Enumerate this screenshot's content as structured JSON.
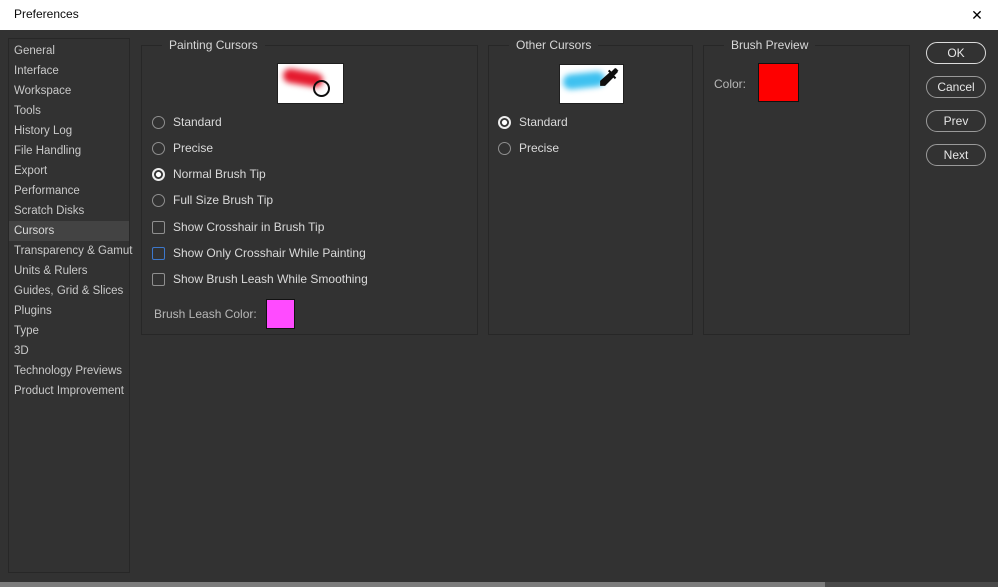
{
  "window": {
    "title": "Preferences",
    "close_icon": "✕"
  },
  "colors": {
    "background": "#323232",
    "focus_border": "#3d78cc",
    "paint_stroke": "#e51a2e",
    "other_stroke": "#3fc1f0",
    "leash_swatch": "#ff4bff",
    "preview_swatch": "#fe0000"
  },
  "sidebar": {
    "items": [
      {
        "label": "General",
        "selected": false
      },
      {
        "label": "Interface",
        "selected": false
      },
      {
        "label": "Workspace",
        "selected": false
      },
      {
        "label": "Tools",
        "selected": false
      },
      {
        "label": "History Log",
        "selected": false
      },
      {
        "label": "File Handling",
        "selected": false
      },
      {
        "label": "Export",
        "selected": false
      },
      {
        "label": "Performance",
        "selected": false
      },
      {
        "label": "Scratch Disks",
        "selected": false
      },
      {
        "label": "Cursors",
        "selected": true
      },
      {
        "label": "Transparency & Gamut",
        "selected": false
      },
      {
        "label": "Units & Rulers",
        "selected": false
      },
      {
        "label": "Guides, Grid & Slices",
        "selected": false
      },
      {
        "label": "Plugins",
        "selected": false
      },
      {
        "label": "Type",
        "selected": false
      },
      {
        "label": "3D",
        "selected": false
      },
      {
        "label": "Technology Previews",
        "selected": false
      },
      {
        "label": "Product Improvement",
        "selected": false
      }
    ]
  },
  "painting_cursors": {
    "legend": "Painting Cursors",
    "radios": [
      {
        "label": "Standard",
        "selected": false
      },
      {
        "label": "Precise",
        "selected": false
      },
      {
        "label": "Normal Brush Tip",
        "selected": true
      },
      {
        "label": "Full Size Brush Tip",
        "selected": false
      }
    ],
    "checkboxes": [
      {
        "label": "Show Crosshair in Brush Tip",
        "checked": false,
        "focused": false
      },
      {
        "label": "Show Only Crosshair While Painting",
        "checked": false,
        "focused": true
      },
      {
        "label": "Show Brush Leash While Smoothing",
        "checked": false,
        "focused": false
      }
    ],
    "leash_label": "Brush Leash Color:"
  },
  "other_cursors": {
    "legend": "Other Cursors",
    "radios": [
      {
        "label": "Standard",
        "selected": true
      },
      {
        "label": "Precise",
        "selected": false
      }
    ]
  },
  "brush_preview": {
    "legend": "Brush Preview",
    "color_label": "Color:"
  },
  "buttons": [
    {
      "label": "OK",
      "default": true
    },
    {
      "label": "Cancel",
      "default": false
    },
    {
      "label": "Prev",
      "default": false
    },
    {
      "label": "Next",
      "default": false
    }
  ]
}
